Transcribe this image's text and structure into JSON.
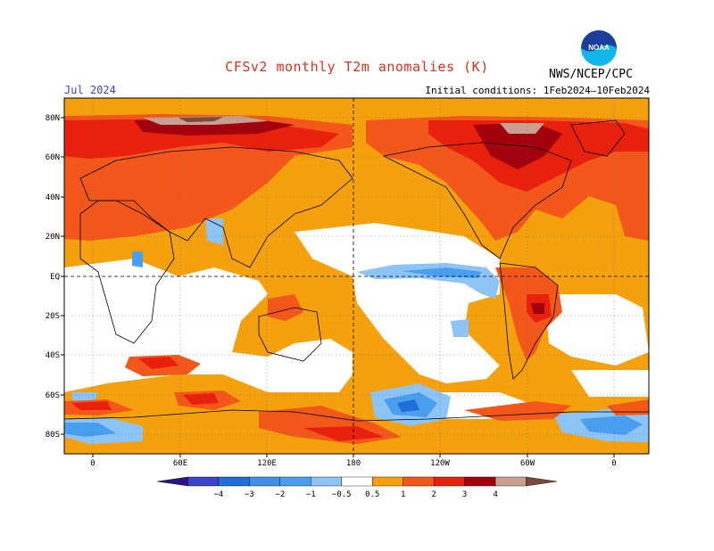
{
  "header": {
    "title": "CFSv2 monthly T2m anomalies (K)",
    "period": "Jul 2024",
    "initial_conditions": "Initial conditions: 1Feb2024–10Feb2024",
    "agency": "NWS/NCEP/CPC",
    "logo_text": "NOAA"
  },
  "map": {
    "lat_labels": [
      "80N",
      "60N",
      "40N",
      "20N",
      "EQ",
      "20S",
      "40S",
      "60S",
      "80S"
    ],
    "lon_labels": [
      "0",
      "60E",
      "120E",
      "180",
      "120W",
      "60W",
      "0"
    ],
    "projection": "cylindrical equidistant, centered 180",
    "colors": {
      "cold_4": "#3a1a9c",
      "cold_3": "#3b44c8",
      "cold_2": "#1f6fd8",
      "cold_1": "#4a9ef0",
      "cold_05": "#8cc4f6",
      "neutral": "#ffffff",
      "warm_05": "#f5a00d",
      "warm_1": "#f3581a",
      "warm_2": "#e8200c",
      "warm_3": "#a3000f",
      "warm_4": "#c8a090",
      "warm_max": "#7a4a3a"
    }
  },
  "colorbar": {
    "labels": [
      "−4",
      "−3",
      "−2",
      "−1",
      "−0.5",
      "0.5",
      "1",
      "2",
      "3",
      "4"
    ],
    "colors": [
      "#2a1586",
      "#3b44c8",
      "#1f6fd8",
      "#3f8ee8",
      "#4a9ef0",
      "#8cc4f6",
      "#ffffff",
      "#f5a00d",
      "#f3581a",
      "#e8200c",
      "#a3000f",
      "#c8a090",
      "#7a4a3a"
    ]
  }
}
